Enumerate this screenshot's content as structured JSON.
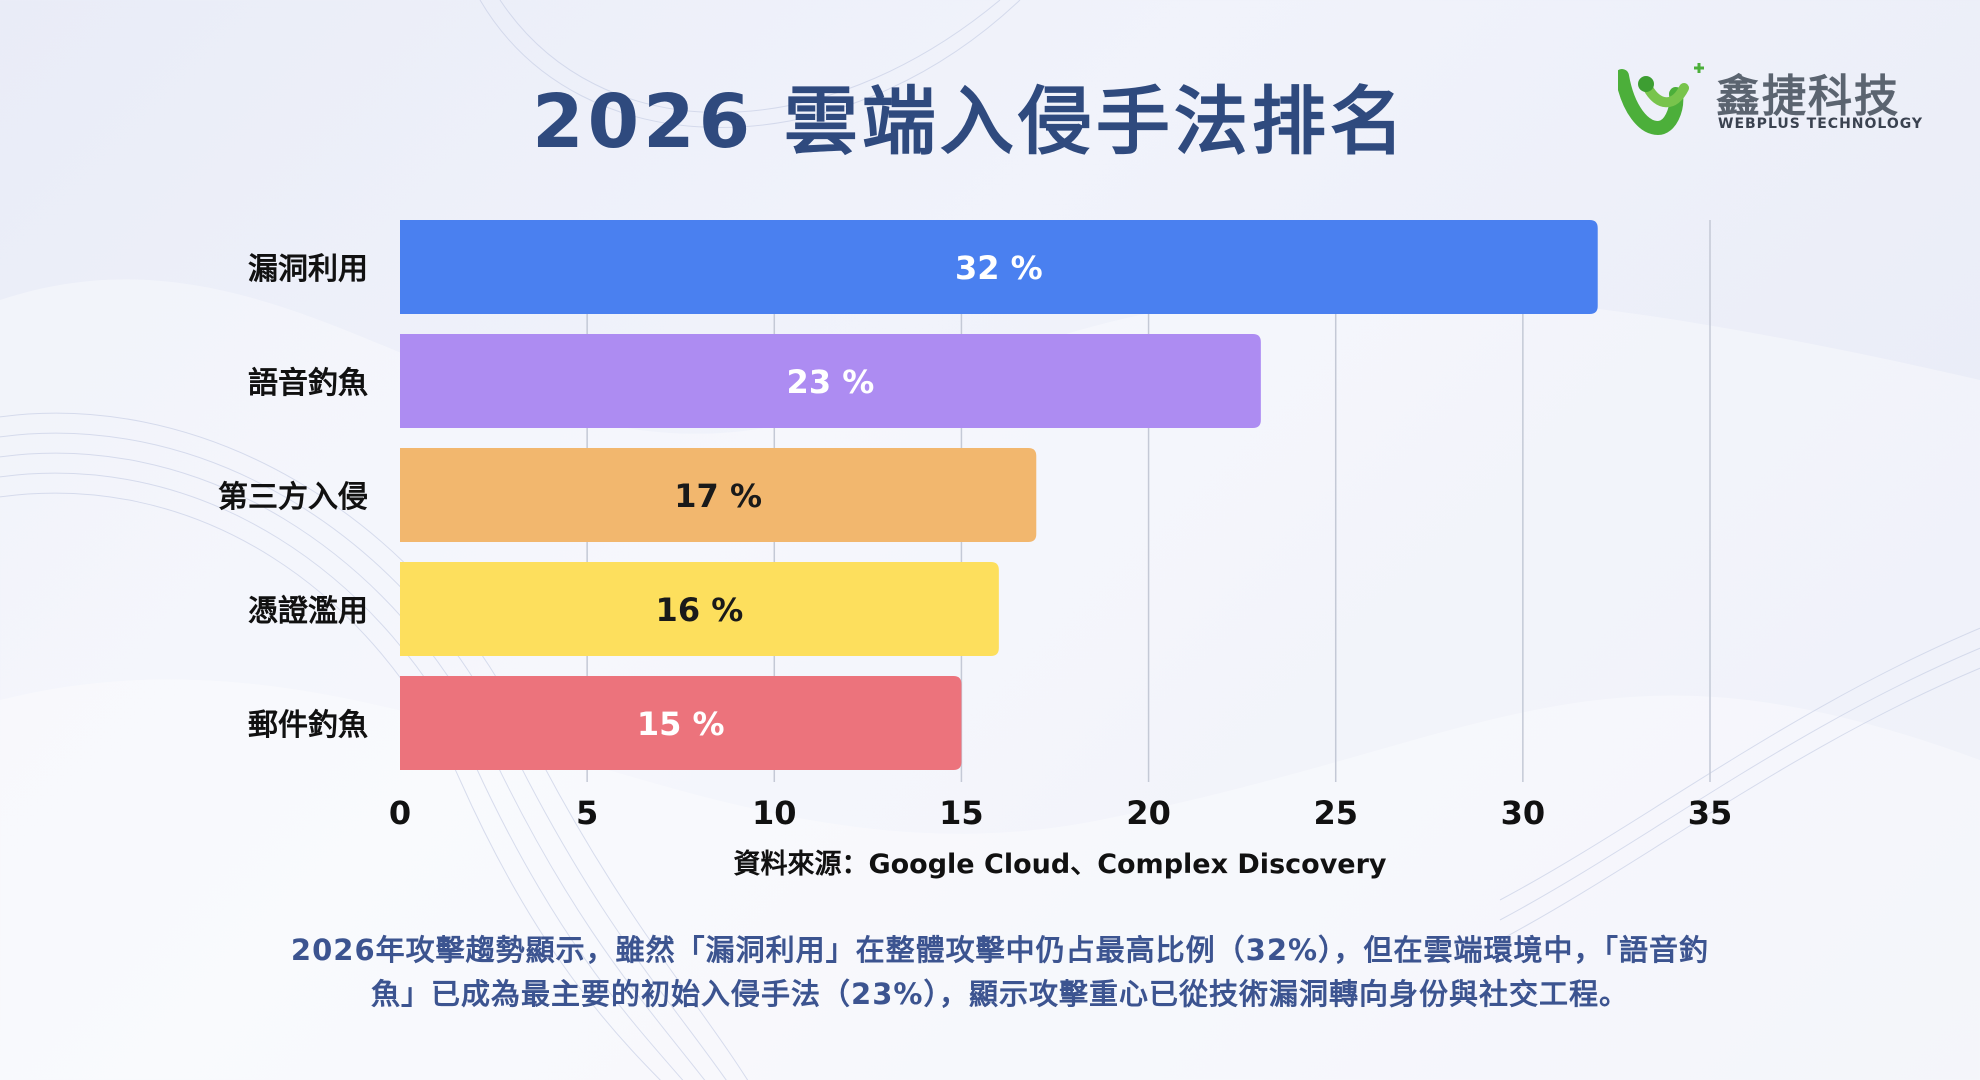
{
  "title": "2026 雲端入侵手法排名",
  "logo": {
    "name": "鑫捷科技",
    "sub": "WEBPLUS TECHNOLOGY"
  },
  "chart_data": {
    "type": "bar",
    "orientation": "horizontal",
    "categories": [
      "漏洞利用",
      "語音釣魚",
      "第三方入侵",
      "憑證濫用",
      "郵件釣魚"
    ],
    "values": [
      32,
      23,
      17,
      16,
      15
    ],
    "value_labels": [
      "32 %",
      "23 %",
      "17 %",
      "16 %",
      "15 %"
    ],
    "colors": [
      "#4a80f0",
      "#ad8cf2",
      "#f2b76e",
      "#fddf5d",
      "#ec737c"
    ],
    "label_colors": [
      "#ffffff",
      "#ffffff",
      "#1a1a1a",
      "#1a1a1a",
      "#ffffff"
    ],
    "xlim": [
      0,
      35
    ],
    "xticks": [
      0,
      5,
      10,
      15,
      20,
      25,
      30,
      35
    ],
    "grid": true,
    "title": "2026 雲端入侵手法排名",
    "xlabel": "",
    "ylabel": ""
  },
  "source": "資料來源：Google Cloud、Complex Discovery",
  "description": "2026年攻擊趨勢顯示，雖然「漏洞利用」在整體攻擊中仍占最高比例（32%），但在雲端環境中，「語音釣魚」已成為最主要的初始入侵手法（23%），顯示攻擊重心已從技術漏洞轉向身份與社交工程。"
}
